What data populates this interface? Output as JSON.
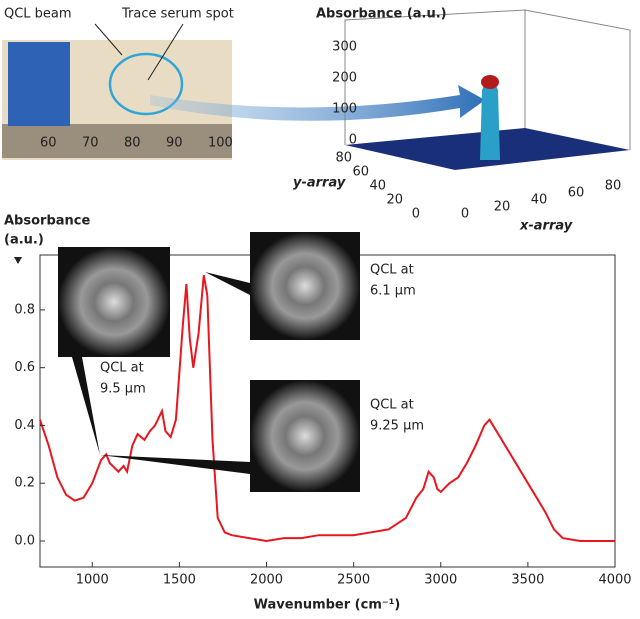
{
  "photo": {
    "labels": [
      "QCL beam",
      "Trace serum spot"
    ],
    "ruler": [
      60,
      70,
      80,
      90,
      100
    ]
  },
  "inset_3d": {
    "title": "Absorbance (a.u.)",
    "zticks": [
      0,
      100,
      200,
      300
    ],
    "yticks": [
      0,
      20,
      40,
      60,
      80
    ],
    "xticks": [
      0,
      20,
      40,
      60,
      80
    ],
    "ylabel": "y-array",
    "xlabel": "x-array"
  },
  "chart_data": {
    "type": "line",
    "ylabel": [
      "Absorbance",
      "(a.u.)"
    ],
    "xlabel": "Wavenumber (cm⁻¹)",
    "xlim": [
      700,
      4000
    ],
    "xticks": [
      1000,
      1500,
      2000,
      2500,
      3000,
      3500,
      4000
    ],
    "ylim": [
      -0.09,
      0.99
    ],
    "yticks": [
      {
        "value": 0,
        "label": "0.0"
      },
      0.2,
      0.4,
      0.6,
      0.8
    ],
    "annotations": [
      [
        "QCL at",
        "9.5 µm"
      ],
      [
        "QCL at",
        "6.1 µm"
      ],
      [
        "QCL at",
        "9.25 µm"
      ]
    ],
    "series": [
      {
        "name": "Absorbance",
        "color": "#e8171f",
        "x": [
          700,
          750,
          800,
          850,
          900,
          950,
          1000,
          1050,
          1080,
          1100,
          1150,
          1180,
          1200,
          1230,
          1260,
          1300,
          1330,
          1360,
          1400,
          1420,
          1450,
          1480,
          1520,
          1540,
          1560,
          1580,
          1610,
          1640,
          1660,
          1690,
          1720,
          1760,
          1800,
          1900,
          2000,
          2100,
          2200,
          2300,
          2400,
          2500,
          2600,
          2700,
          2800,
          2860,
          2900,
          2930,
          2960,
          2980,
          3000,
          3050,
          3100,
          3150,
          3200,
          3250,
          3280,
          3320,
          3400,
          3500,
          3600,
          3650,
          3700,
          3800,
          4000
        ],
        "values": [
          0.42,
          0.33,
          0.22,
          0.16,
          0.14,
          0.15,
          0.2,
          0.28,
          0.3,
          0.27,
          0.24,
          0.26,
          0.24,
          0.33,
          0.37,
          0.35,
          0.38,
          0.4,
          0.45,
          0.38,
          0.36,
          0.42,
          0.75,
          0.89,
          0.7,
          0.6,
          0.72,
          0.92,
          0.85,
          0.35,
          0.08,
          0.03,
          0.02,
          0.01,
          0,
          0.01,
          0.01,
          0.02,
          0.02,
          0.02,
          0.03,
          0.04,
          0.08,
          0.15,
          0.18,
          0.24,
          0.22,
          0.18,
          0.17,
          0.2,
          0.22,
          0.27,
          0.33,
          0.4,
          0.42,
          0.38,
          0.3,
          0.2,
          0.1,
          0.04,
          0.01,
          0,
          0
        ]
      }
    ]
  }
}
